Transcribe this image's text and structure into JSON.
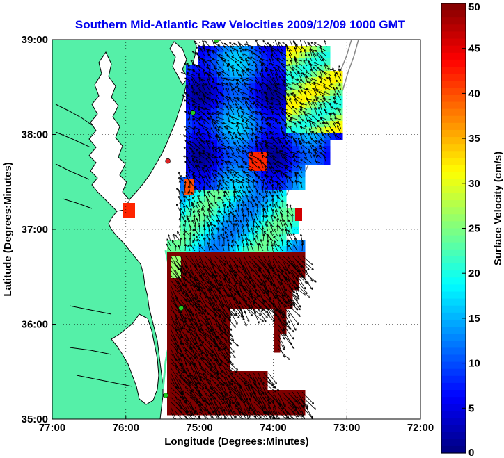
{
  "title": "Southern Mid-Atlantic Raw Velocities 2009/12/09 1000 GMT",
  "xlabel": "Longitude (Degrees:Minutes)",
  "ylabel": "Latitude (Degrees:Minutes)",
  "colorbar_label": "Surface Velocity (cm/s)",
  "x_ticks": [
    {
      "value": -77,
      "label": "77:00"
    },
    {
      "value": -76,
      "label": "76:00"
    },
    {
      "value": -75,
      "label": "75:00"
    },
    {
      "value": -74,
      "label": "74:00"
    },
    {
      "value": -73,
      "label": "73:00"
    },
    {
      "value": -72,
      "label": "72:00"
    }
  ],
  "y_ticks": [
    {
      "value": 39,
      "label": "39:00"
    },
    {
      "value": 38,
      "label": "38:00"
    },
    {
      "value": 37,
      "label": "37:00"
    },
    {
      "value": 36,
      "label": "36:00"
    },
    {
      "value": 35,
      "label": "35:00"
    }
  ],
  "colorbar_ticks": [
    {
      "value": 50,
      "label": "50"
    },
    {
      "value": 45,
      "label": "45"
    },
    {
      "value": 40,
      "label": "40"
    },
    {
      "value": 35,
      "label": "35"
    },
    {
      "value": 30,
      "label": "30"
    },
    {
      "value": 25,
      "label": "25"
    },
    {
      "value": 20,
      "label": "20"
    },
    {
      "value": 15,
      "label": "15"
    },
    {
      "value": 10,
      "label": "10"
    },
    {
      "value": 5,
      "label": "5"
    },
    {
      "value": 0,
      "label": "0"
    }
  ],
  "colors": {
    "land": "#55f0a8",
    "coast": "#000000",
    "title": "#0000ee",
    "grid": "#000000",
    "station": "#22cc22",
    "station_alt": "#dd2222",
    "shelf": "#888888"
  },
  "chart_data": {
    "type": "heatmap",
    "xlim": [
      -77,
      -72
    ],
    "ylim": [
      35,
      39
    ],
    "clim": [
      0,
      50
    ],
    "colormap": "jet",
    "grid": true,
    "stations": [
      {
        "lon": -74.77,
        "lat": 38.99,
        "color": "station"
      },
      {
        "lon": -75.09,
        "lat": 38.23,
        "color": "station"
      },
      {
        "lon": -75.43,
        "lat": 37.72,
        "color": "station_alt"
      },
      {
        "lon": -75.25,
        "lat": 36.17,
        "color": "station"
      },
      {
        "lon": -75.46,
        "lat": 35.25,
        "color": "station"
      }
    ]
  }
}
